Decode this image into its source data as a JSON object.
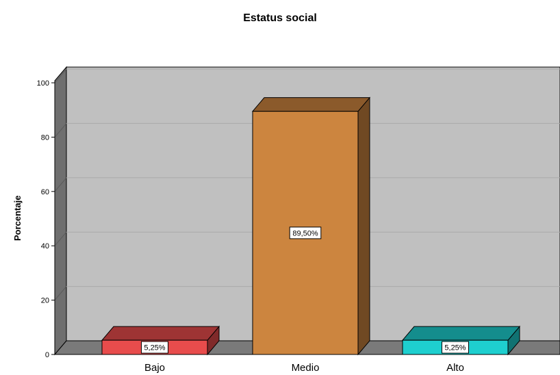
{
  "chart_data": {
    "type": "bar",
    "title": "Estatus social",
    "xlabel": "",
    "ylabel": "Porcentaje",
    "categories": [
      "Bajo",
      "Medio",
      "Alto"
    ],
    "values": [
      5.25,
      89.5,
      5.25
    ],
    "data_labels": [
      "5,25%",
      "89,50%",
      "5,25%"
    ],
    "colors": [
      "#e84c4c",
      "#cc853f",
      "#1ecfcf"
    ],
    "ylim": [
      0,
      100
    ],
    "yticks": [
      "0",
      "20",
      "40",
      "60",
      "80",
      "100"
    ],
    "grid": true,
    "style": "3d"
  }
}
